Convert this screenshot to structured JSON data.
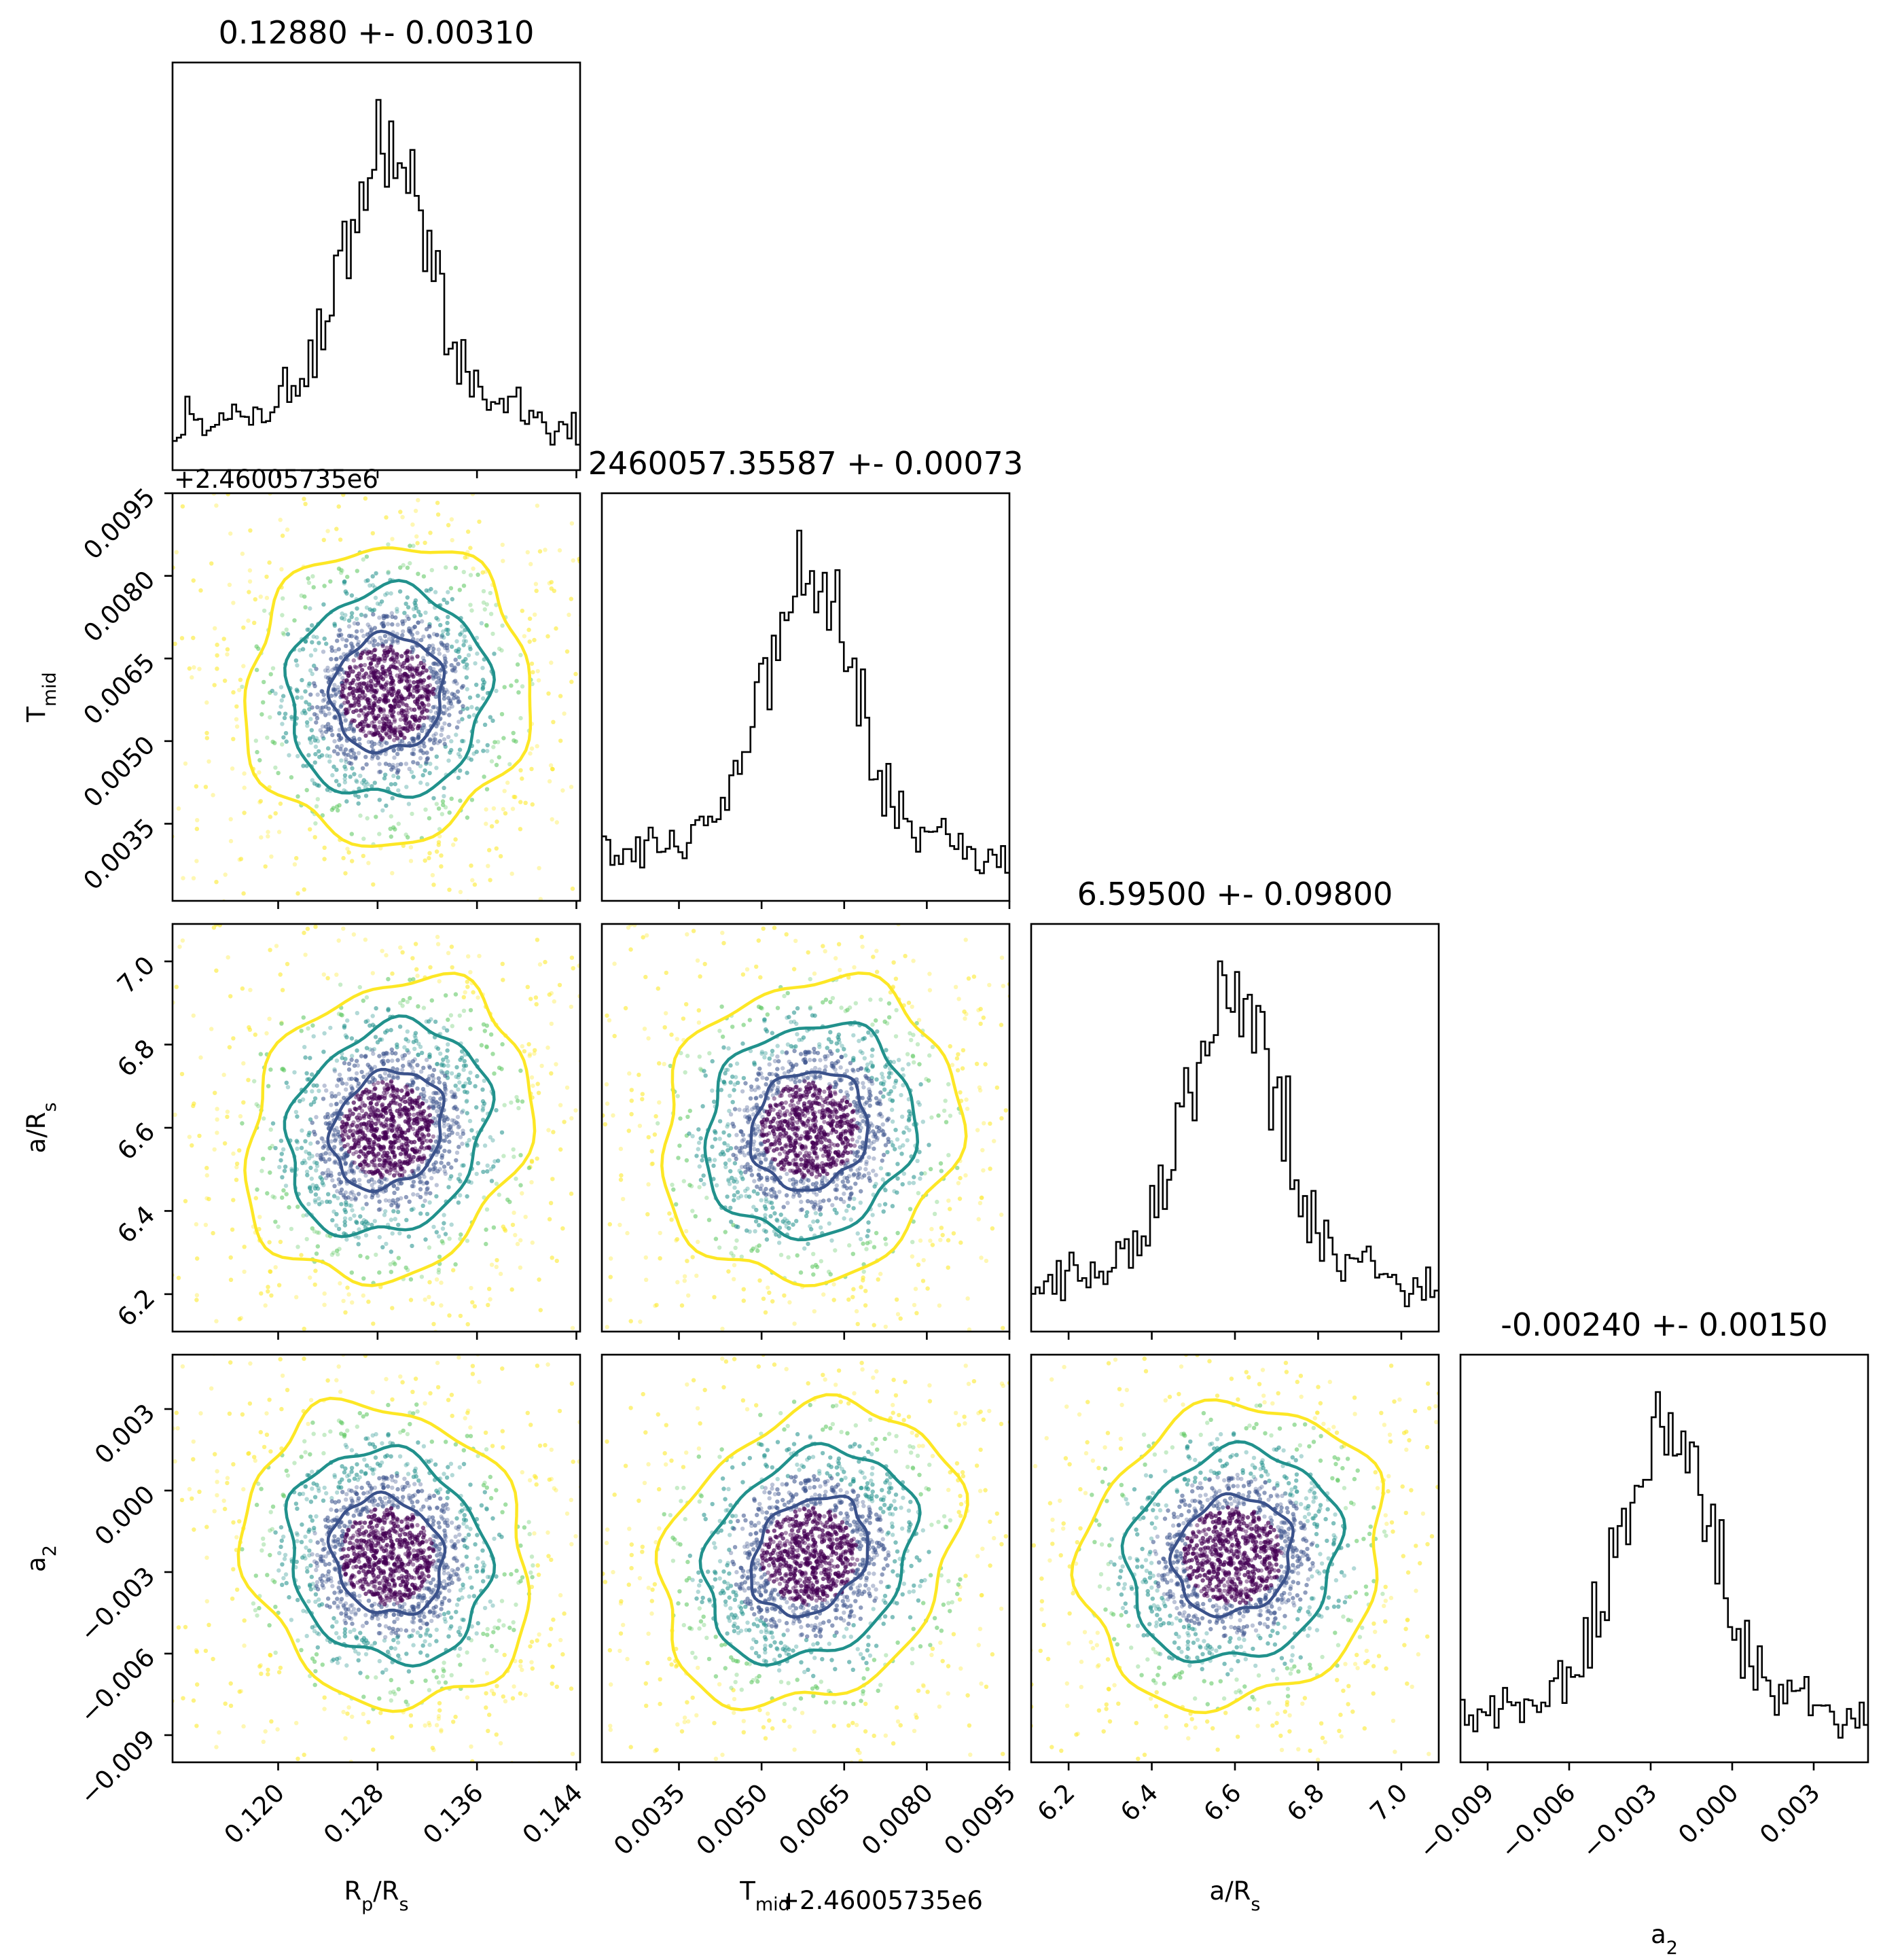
{
  "figure": {
    "type": "corner-plot",
    "colors": {
      "contour_inner": "#3b528b",
      "contour_mid": "#21918c",
      "contour_outer": "#fde725",
      "point_core": "#440154",
      "histogram": "#000000"
    }
  },
  "chart_data": {
    "type": "corner",
    "parameters": [
      {
        "id": "rp",
        "axis_label": "R_p/R_s",
        "axis_label_main": "R",
        "axis_label_sub": "p",
        "axis_label_tail": "/R",
        "axis_label_sub2": "s",
        "title": "0.12880 +- 0.00310",
        "median": 0.1288,
        "sigma": 0.0031,
        "range": [
          0.1115,
          0.1443
        ],
        "ticks": [
          0.12,
          0.128,
          0.136,
          0.144
        ],
        "tick_labels": [
          "0.120",
          "0.128",
          "0.136",
          "0.144"
        ]
      },
      {
        "id": "tmid",
        "axis_label": "T_mid",
        "axis_label_main": "T",
        "axis_label_sub": "mid",
        "title": "2460057.35587 +- 0.00073",
        "median": 0.00587,
        "sigma": 0.00073,
        "offset_text": "+2.46005735e6",
        "range": [
          0.0021,
          0.0095
        ],
        "ticks": [
          0.0035,
          0.005,
          0.0065,
          0.008,
          0.0095
        ],
        "tick_labels": [
          "0.0035",
          "0.0050",
          "0.0065",
          "0.0080",
          "0.0095"
        ]
      },
      {
        "id": "ars",
        "axis_label": "a/R_s",
        "axis_label_main": "a/R",
        "axis_label_sub": "s",
        "title": "6.59500 +- 0.09800",
        "median": 6.595,
        "sigma": 0.098,
        "range": [
          6.11,
          7.09
        ],
        "ticks": [
          6.2,
          6.4,
          6.6,
          6.8,
          7.0
        ],
        "tick_labels": [
          "6.2",
          "6.4",
          "6.6",
          "6.8",
          "7.0"
        ]
      },
      {
        "id": "a2",
        "axis_label": "a_2",
        "axis_label_main": "a",
        "axis_label_sub": "2",
        "title": "-0.00240 +- 0.00150",
        "median": -0.0024,
        "sigma": 0.0015,
        "range": [
          -0.01,
          0.005
        ],
        "ticks": [
          -0.009,
          -0.006,
          -0.003,
          0.0,
          0.003
        ],
        "tick_labels": [
          "−0.009",
          "−0.006",
          "−0.003",
          "0.000",
          "0.003"
        ]
      }
    ],
    "correlations": {
      "1_0": 0.05,
      "2_0": 0.2,
      "2_1": 0.1,
      "3_0": -0.15,
      "3_1": 0.25,
      "3_2": 0.12
    },
    "contour_levels_sigma": [
      1,
      2,
      3
    ],
    "grid": false,
    "legend": "none"
  }
}
